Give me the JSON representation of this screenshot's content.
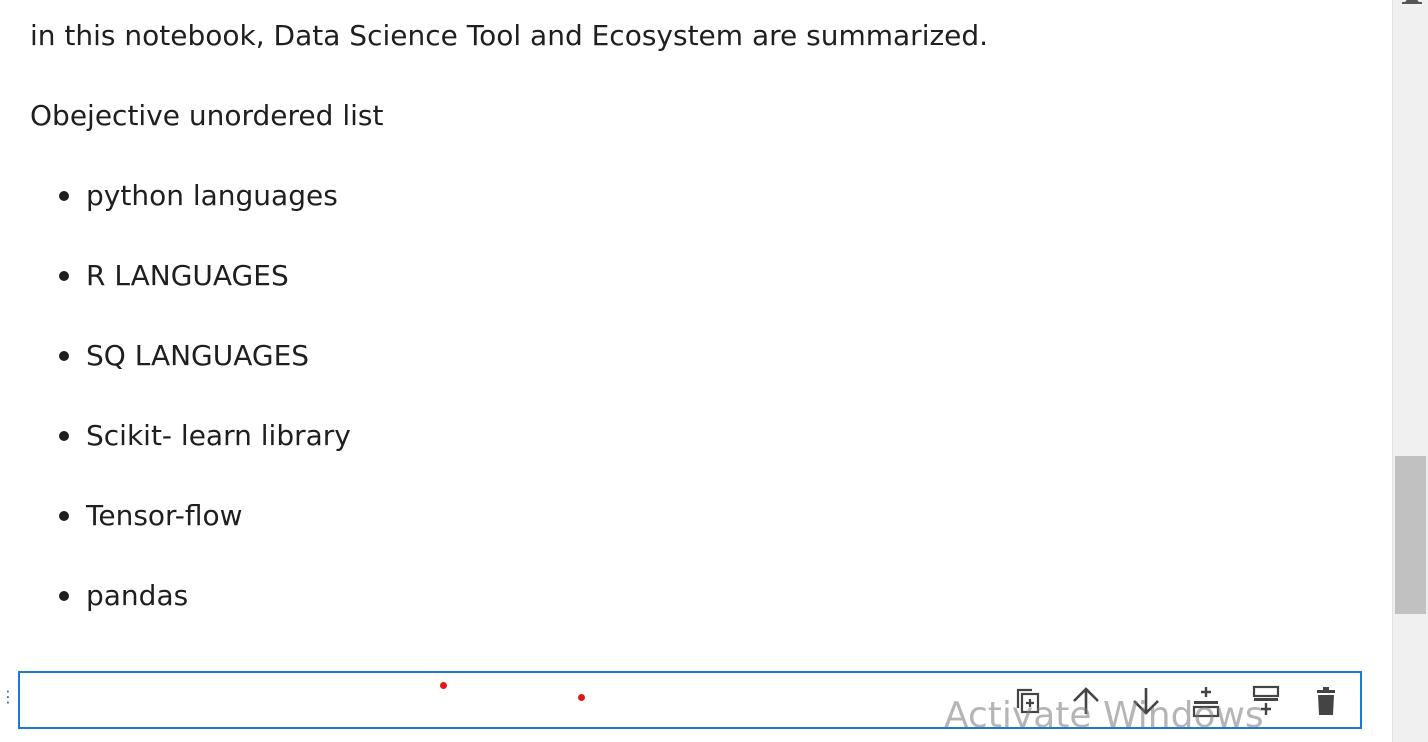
{
  "markdown_cell": {
    "intro": "in this notebook, Data Science Tool and Ecosystem are summarized.",
    "heading": "Obejective unordered list",
    "items": [
      "python languages",
      "R LANGUAGES",
      "SQ LANGUAGES",
      "Scikit- learn library",
      "Tensor-flow",
      "pandas"
    ]
  },
  "code_cell": {
    "value": ""
  },
  "toolbar": {
    "icons": [
      "duplicate-icon",
      "move-up-icon",
      "move-down-icon",
      "insert-above-icon",
      "insert-below-icon",
      "delete-icon"
    ]
  },
  "watermark": {
    "text": "Activate Windows"
  },
  "colors": {
    "active_cell_border": "#1e78d2",
    "text": "#1f1f1f",
    "marker_dot": "#e01818",
    "scroll_thumb": "#c1c1c1",
    "icon": "#444444"
  }
}
